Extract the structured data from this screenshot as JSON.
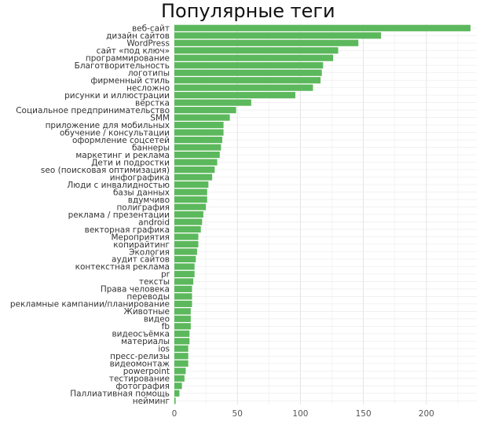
{
  "chart_data": {
    "type": "bar",
    "orientation": "horizontal",
    "title": "Популярные теги",
    "xlabel": "",
    "ylabel": "",
    "xlim": [
      0,
      240
    ],
    "x_ticks": [
      0,
      50,
      100,
      150,
      200
    ],
    "grid": true,
    "bar_color": "#5cb85c",
    "categories": [
      "веб-сайт",
      "дизайн сайтов",
      "WordPress",
      "сайт «под ключ»",
      "программирование",
      "Благотворительность",
      "логотипы",
      "фирменный стиль",
      "несложно",
      "рисунки и иллюстрации",
      "вёрстка",
      "Социальное предпринимательство",
      "SMM",
      "приложение для мобильных",
      "обучение / консультации",
      "оформление соцсетей",
      "баннеры",
      "маркетинг и реклама",
      "Дети и подростки",
      "seo (поисковая оптимизация)",
      "инфографика",
      "Люди с инвалидностью",
      "базы данных",
      "вдумчиво",
      "полиграфия",
      "реклама / презентации",
      "android",
      "векторная графика",
      "Мероприятия",
      "копирайтинг",
      "Экология",
      "аудит сайтов",
      "контекстная реклама",
      "pr",
      "тексты",
      "Права человека",
      "переводы",
      "рекламные кампании/планирование",
      "Животные",
      "видео",
      "fb",
      "видеосъёмка",
      "материалы",
      "ios",
      "пресс-релизы",
      "видеомонтаж",
      "powerpoint",
      "тестирование",
      "фотография",
      "Паллиативная помощь",
      "нейминг"
    ],
    "values": [
      235,
      164,
      146,
      130,
      126,
      118,
      117,
      116,
      110,
      96,
      61,
      49,
      44,
      39,
      39,
      38,
      37,
      36,
      34,
      32,
      30,
      27,
      26,
      26,
      25,
      23,
      22,
      21,
      19,
      19,
      18,
      17,
      16,
      16,
      15,
      14,
      14,
      14,
      13,
      13,
      13,
      12,
      12,
      11,
      11,
      11,
      9,
      8,
      6,
      4,
      1
    ]
  }
}
